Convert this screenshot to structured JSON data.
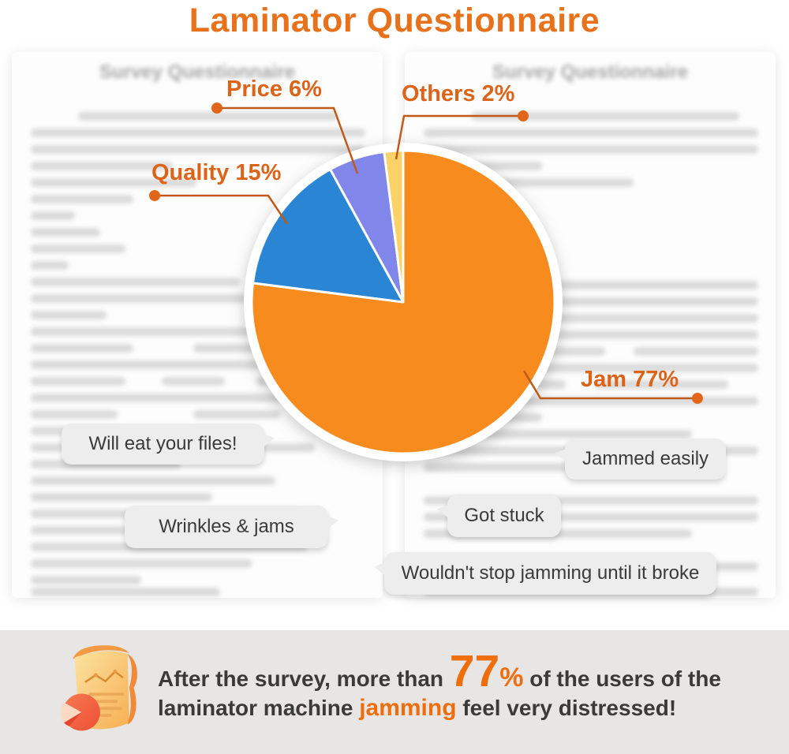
{
  "page": {
    "title": "Laminator Questionnaire"
  },
  "background_documents": {
    "left": {
      "title": "Survey Questionnaire"
    },
    "right": {
      "title": "Survey Questionnaire"
    }
  },
  "chart_data": {
    "type": "pie",
    "title": "Laminator Questionnaire",
    "unit": "%",
    "start_angle_deg": 0,
    "direction": "clockwise",
    "slices": [
      {
        "label": "Jam",
        "value": 77,
        "color": "#F88B1E"
      },
      {
        "label": "Quality",
        "value": 15,
        "color": "#2A85D4"
      },
      {
        "label": "Price",
        "value": 6,
        "color": "#8186EA"
      },
      {
        "label": "Others",
        "value": 2,
        "color": "#FAD268"
      }
    ],
    "callouts": [
      {
        "slice": "Price",
        "text": "Price 6%"
      },
      {
        "slice": "Others",
        "text": "Others 2%"
      },
      {
        "slice": "Quality",
        "text": "Quality 15%"
      },
      {
        "slice": "Jam",
        "text": "Jam 77%"
      }
    ],
    "legend_position": "none",
    "grid": false
  },
  "quote_bubbles": [
    {
      "text": "Will eat your files!"
    },
    {
      "text": "Jammed easily"
    },
    {
      "text": "Got stuck"
    },
    {
      "text": "Wrinkles & jams"
    },
    {
      "text": "Wouldn't stop jamming until it broke"
    }
  ],
  "footer": {
    "line1_before": "After the survey, more than ",
    "big_number": "77",
    "percent": "%",
    "line1_after": " of the users of the",
    "line2_before": "laminator machine ",
    "highlight": "jamming",
    "line2_after": " feel very distressed!"
  },
  "colors": {
    "title_orange": "#E8721C",
    "callout_label_orange": "#DC6317",
    "leader_line_brown": "#C05A18",
    "slice_jam": "#F88B1E",
    "slice_quality": "#2A85D4",
    "slice_price": "#8186EA",
    "slice_others": "#FAD268",
    "bubble_background": "#EDEDED",
    "footer_band_background": "#E7E6E4",
    "footer_text_dark": "#3A3A3A",
    "footer_highlight_orange": "#EE6E0E"
  }
}
